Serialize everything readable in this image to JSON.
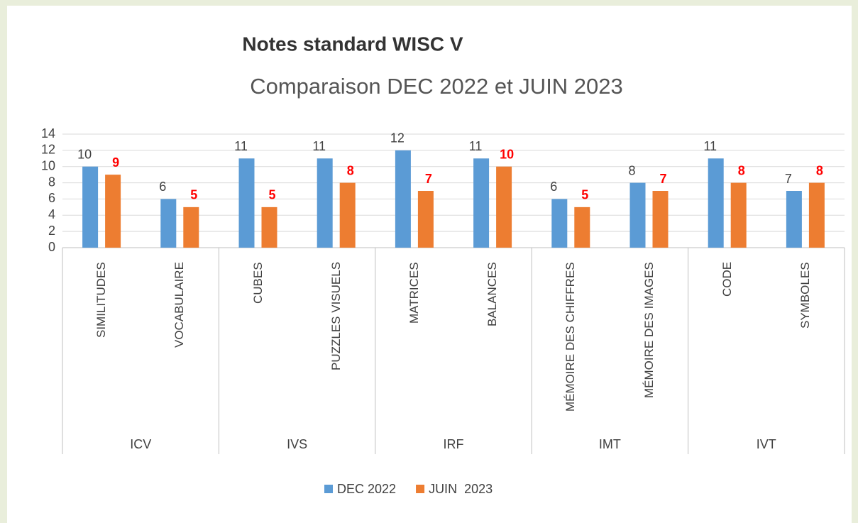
{
  "chart_data": {
    "type": "bar",
    "title": "Notes standard WISC V",
    "subtitle": "Comparaison DEC 2022 et JUIN 2023",
    "categories": [
      "SIMILITUDES",
      "VOCABULAIRE",
      "CUBES",
      "PUZZLES VISUELS",
      "MATRICES",
      "BALANCES",
      "MÉMOIRE DES CHIFFRES",
      "MÉMOIRE DES IMAGES",
      "CODE",
      "SYMBOLES"
    ],
    "groups": [
      "ICV",
      "IVS",
      "IRF",
      "IMT",
      "IVT"
    ],
    "series": [
      {
        "name": "DEC 2022",
        "color": "#5b9bd5",
        "label_color": "#404040",
        "values": [
          10,
          6,
          11,
          11,
          12,
          11,
          6,
          8,
          11,
          7
        ]
      },
      {
        "name": "JUIN  2023",
        "color": "#ed7d31",
        "label_color": "#ff0000",
        "values": [
          9,
          5,
          5,
          8,
          7,
          10,
          5,
          7,
          8,
          8
        ]
      }
    ],
    "ylim": [
      0,
      14
    ],
    "yticks": [
      0,
      2,
      4,
      6,
      8,
      10,
      12,
      14
    ],
    "grid": true,
    "legend": "bottom"
  }
}
